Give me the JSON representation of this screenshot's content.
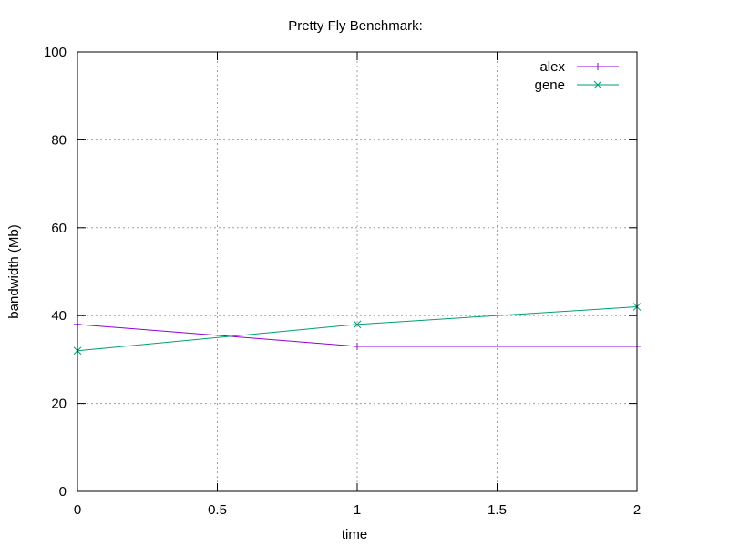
{
  "chart_data": {
    "type": "line",
    "title": "Pretty Fly Benchmark:",
    "xlabel": "time",
    "ylabel": "bandwidth (Mb)",
    "xlim": [
      0,
      2
    ],
    "ylim": [
      0,
      100
    ],
    "xticks": [
      0,
      0.5,
      1,
      1.5,
      2
    ],
    "xtick_labels": [
      "0",
      "0.5",
      "1",
      "1.5",
      "2"
    ],
    "yticks": [
      0,
      20,
      40,
      60,
      80,
      100
    ],
    "ytick_labels": [
      "0",
      "20",
      "40",
      "60",
      "80",
      "100"
    ],
    "grid": true,
    "legend_position": "top-right",
    "series": [
      {
        "name": "alex",
        "color": "#9400d3",
        "marker": "plus",
        "x": [
          0,
          1,
          2
        ],
        "y": [
          38,
          33,
          33
        ]
      },
      {
        "name": "gene",
        "color": "#009e73",
        "marker": "x",
        "x": [
          0,
          1,
          2
        ],
        "y": [
          32,
          38,
          42
        ]
      }
    ]
  }
}
